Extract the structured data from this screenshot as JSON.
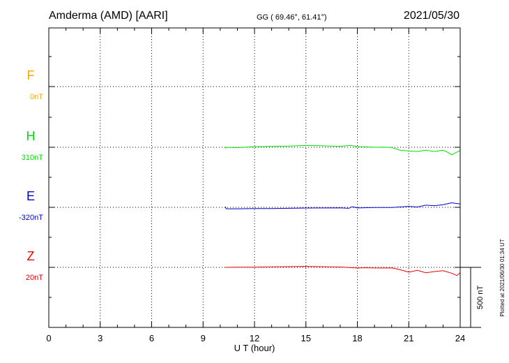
{
  "header": {
    "station": "Amderma (AMD)  [AARI]",
    "coords": "GG ( 69.46°,  61.41°)",
    "date": "2021/05/30"
  },
  "footer": {
    "plotted": "Plotted at 2021/06/30 01:34 UT"
  },
  "scale": {
    "label": "500 nT",
    "value_nT": 500
  },
  "chart_data": {
    "type": "line",
    "title": "",
    "xlabel": "U T (hour)",
    "xlim": [
      0,
      24
    ],
    "xticks": [
      0,
      3,
      6,
      9,
      12,
      15,
      18,
      21,
      24
    ],
    "x_minor_step": 1,
    "grid": true,
    "series": [
      {
        "name": "F",
        "baseline_label": "0nT",
        "color": "#ffa500",
        "x": [],
        "values": []
      },
      {
        "name": "H",
        "baseline_label": "310nT",
        "color": "#00dd00",
        "x": [
          10.3,
          10.35,
          11,
          12,
          13,
          14,
          15,
          16,
          17,
          17.6,
          18,
          18.5,
          19,
          19.5,
          20,
          20.5,
          21,
          21.5,
          22,
          22.5,
          23,
          23.2,
          23.5,
          24
        ],
        "values": [
          -10,
          0,
          -3,
          4,
          8,
          10,
          15,
          12,
          8,
          16,
          6,
          3,
          0,
          1,
          -2,
          -25,
          -30,
          -35,
          -25,
          -35,
          -25,
          -36,
          -62,
          -27
        ]
      },
      {
        "name": "E",
        "baseline_label": "-320nT",
        "color": "#0000cc",
        "x": [
          10.3,
          10.35,
          11,
          12,
          13,
          14,
          15,
          16,
          17,
          17.5,
          17.7,
          18,
          19,
          20,
          21,
          21.5,
          22,
          22.5,
          23,
          23.5,
          24
        ],
        "values": [
          5,
          -12,
          -12,
          -10,
          -10,
          -8,
          -6,
          -5,
          -4,
          -8,
          5,
          -5,
          -2,
          -2,
          8,
          3,
          18,
          13,
          22,
          38,
          28
        ]
      },
      {
        "name": "Z",
        "baseline_label": "20nT",
        "color": "#ee0000",
        "x": [
          10.3,
          10.35,
          11,
          12,
          13,
          14,
          15,
          16,
          17,
          18,
          18.5,
          19,
          19.5,
          20,
          20.5,
          21,
          21.5,
          22,
          22.5,
          23,
          23.5,
          23.8,
          24
        ],
        "values": [
          0,
          0,
          1,
          2,
          4,
          6,
          8,
          5,
          3,
          -5,
          -3,
          -5,
          -5,
          -4,
          -20,
          -40,
          -25,
          -45,
          -35,
          -28,
          -48,
          -68,
          -45
        ]
      }
    ]
  }
}
